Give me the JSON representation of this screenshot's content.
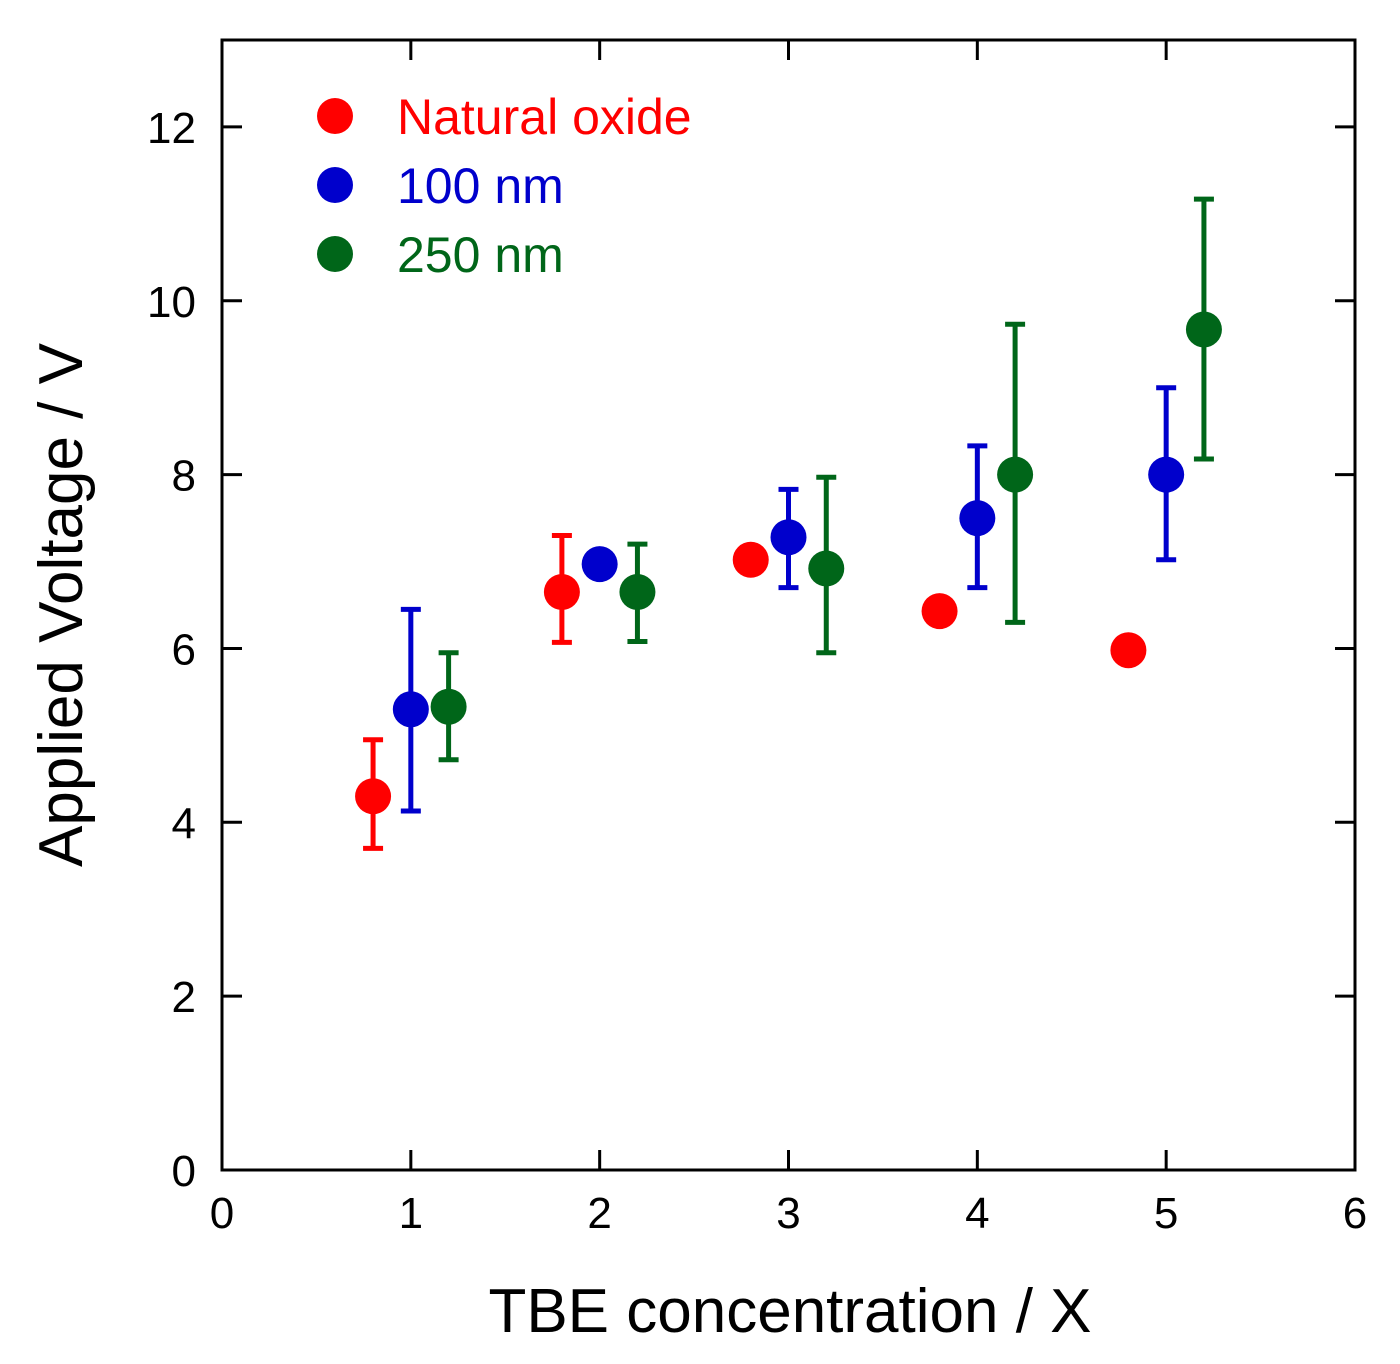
{
  "chart_data": {
    "type": "scatter",
    "title": "",
    "xlabel": "TBE concentration / X",
    "ylabel": "Applied Voltage / V",
    "xlim": [
      0,
      6
    ],
    "ylim": [
      0,
      13
    ],
    "x_ticks": [
      0,
      1,
      2,
      3,
      4,
      5,
      6
    ],
    "y_ticks": [
      0,
      2,
      4,
      6,
      8,
      10,
      12
    ],
    "x_tick_labels": [
      "0",
      "1",
      "2",
      "3",
      "4",
      "5",
      "6"
    ],
    "y_tick_labels": [
      "0",
      "2",
      "4",
      "6",
      "8",
      "10",
      "12"
    ],
    "grid": false,
    "legend_position": "top-left",
    "series": [
      {
        "name": "Natural oxide",
        "color": "#ff0000",
        "points": [
          {
            "x": 0.8,
            "y": 4.3,
            "err_low": 3.7,
            "err_high": 4.95
          },
          {
            "x": 1.8,
            "y": 6.65,
            "err_low": 6.07,
            "err_high": 7.3
          },
          {
            "x": 2.8,
            "y": 7.02,
            "err_low": null,
            "err_high": null
          },
          {
            "x": 3.8,
            "y": 6.43,
            "err_low": null,
            "err_high": null
          },
          {
            "x": 4.8,
            "y": 5.98,
            "err_low": null,
            "err_high": null
          }
        ]
      },
      {
        "name": "100 nm",
        "color": "#0000cc",
        "points": [
          {
            "x": 1.0,
            "y": 5.3,
            "err_low": 4.13,
            "err_high": 6.45
          },
          {
            "x": 2.0,
            "y": 6.97,
            "err_low": null,
            "err_high": null
          },
          {
            "x": 3.0,
            "y": 7.28,
            "err_low": 6.7,
            "err_high": 7.83
          },
          {
            "x": 4.0,
            "y": 7.5,
            "err_low": 6.7,
            "err_high": 8.33
          },
          {
            "x": 5.0,
            "y": 8.0,
            "err_low": 7.02,
            "err_high": 9.0
          }
        ]
      },
      {
        "name": "250 nm",
        "color": "#006619",
        "points": [
          {
            "x": 1.2,
            "y": 5.33,
            "err_low": 4.72,
            "err_high": 5.95
          },
          {
            "x": 2.2,
            "y": 6.65,
            "err_low": 6.08,
            "err_high": 7.2
          },
          {
            "x": 3.2,
            "y": 6.92,
            "err_low": 5.95,
            "err_high": 7.97
          },
          {
            "x": 4.2,
            "y": 8.0,
            "err_low": 6.3,
            "err_high": 9.73
          },
          {
            "x": 5.2,
            "y": 9.67,
            "err_low": 8.18,
            "err_high": 11.17
          }
        ]
      }
    ]
  }
}
